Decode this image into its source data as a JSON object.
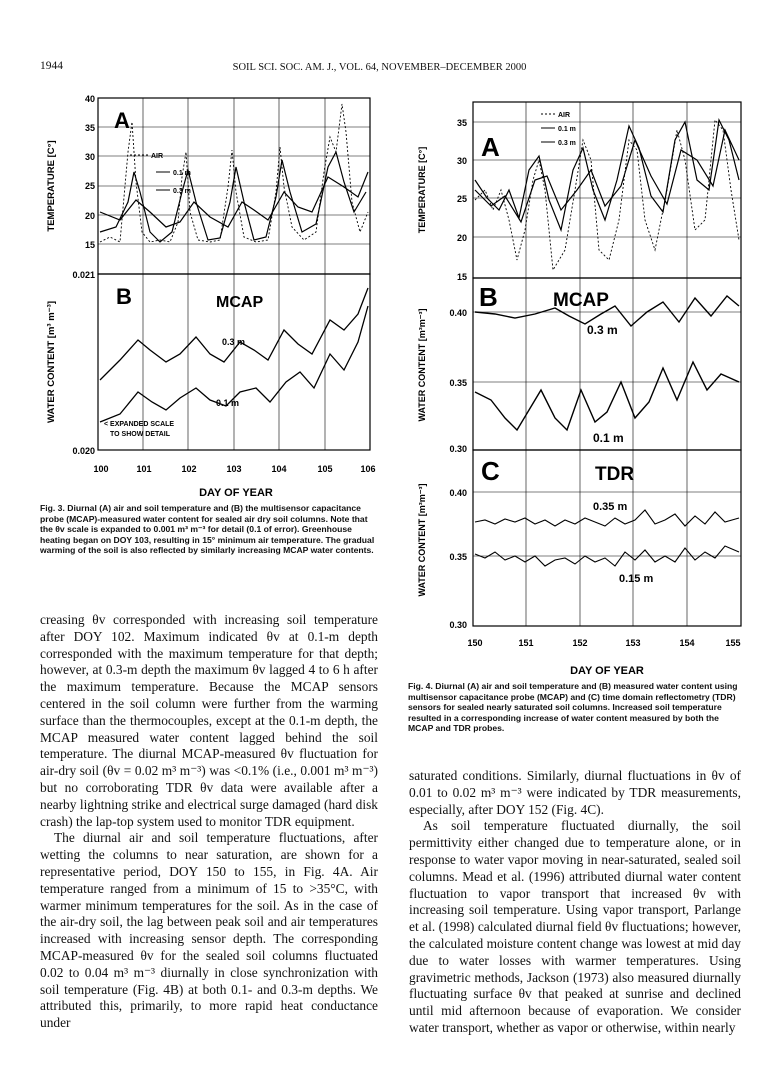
{
  "header": {
    "page_number": "1944",
    "running_title": "SOIL SCI. SOC. AM. J., VOL. 64, NOVEMBER–DECEMBER 2000"
  },
  "fig3": {
    "caption_label": "Fig. 3.",
    "caption_text": "Diurnal (A) air and soil temperature and (B) the multisensor capacitance probe (MCAP)-measured water content for sealed air dry soil columns. Note that the θv scale is expanded to 0.001 m³ m⁻³ for detail (0.1 of error). Greenhouse heating began on DOY 103, resulting in 15° minimum air temperature. The gradual warming of the soil is also reflected by similarly increasing MCAP water contents.",
    "xlabel": "DAY OF YEAR",
    "panelA": {
      "letter": "A",
      "ylabel": "TEMPERATURE [C°]",
      "yticks": [
        "40",
        "35",
        "30",
        "25",
        "20",
        "15"
      ],
      "legend": [
        "AIR",
        "0.1 m",
        "0.3 m"
      ]
    },
    "panelB": {
      "letter": "B",
      "title": "MCAP",
      "ylabel": "WATER CONTENT [m³ m⁻³]",
      "yticks": [
        "0.021",
        "0.020"
      ],
      "label_03": "0.3 m",
      "label_01": "0.1 m",
      "note1": "< EXPANDED SCALE",
      "note2": "TO SHOW DETAIL"
    },
    "xticks": [
      "100",
      "101",
      "102",
      "103",
      "104",
      "105",
      "106"
    ]
  },
  "fig4": {
    "caption_label": "Fig. 4.",
    "caption_text": "Diurnal (A) air and soil temperature and (B) measured water content using multisensor capacitance probe (MCAP) and (C) time domain reflectometry (TDR) sensors for sealed nearly saturated soil columns. Increased soil temperature resulted in a corresponding increase of water content measured by both the MCAP and TDR probes.",
    "xlabel": "DAY OF YEAR",
    "panelA": {
      "letter": "A",
      "ylabel": "TEMPERATURE [C°]",
      "yticks": [
        "35",
        "30",
        "25",
        "20",
        "15"
      ],
      "legend": [
        "AIR",
        "0.1 m",
        "0.3 m"
      ]
    },
    "panelB": {
      "letter": "B",
      "title": "MCAP",
      "ylabel": "WATER CONTENT [m³m⁻³]",
      "yticks": [
        "0.40",
        "0.35",
        "0.30"
      ],
      "label_03": "0.3 m",
      "label_01": "0.1 m"
    },
    "panelC": {
      "letter": "C",
      "title": "TDR",
      "ylabel": "WATER CONTENT [m³m⁻³]",
      "yticks": [
        "0.40",
        "0.35",
        "0.30"
      ],
      "label_035": "0.35 m",
      "label_015": "0.15 m"
    },
    "xticks": [
      "150",
      "151",
      "152",
      "153",
      "154",
      "155"
    ]
  },
  "left_text": [
    "creasing θv corresponded with increasing soil temperature after DOY 102. Maximum indicated θv at 0.1-m depth corresponded with the maximum temperature for that depth; however, at 0.3-m depth the maximum θv lagged 4 to 6 h after the maximum temperature. Because the MCAP sensors centered in the soil column were further from the warming surface than the thermocouples, except at the 0.1-m depth, the MCAP measured water content lagged behind the soil temperature. The diurnal MCAP-measured θv fluctuation for air-dry soil (θv = 0.02 m³ m⁻³) was <0.1% (i.e., 0.001 m³ m⁻³) but no corroborating TDR θv data were available after a nearby lightning strike and electrical surge damaged (hard disk crash) the lap-top system used to monitor TDR equipment.",
    "The diurnal air and soil temperature fluctuations, after wetting the columns to near saturation, are shown for a representative period, DOY 150 to 155, in Fig. 4A. Air temperature ranged from a minimum of 15 to >35°C, with warmer minimum temperatures for the soil. As in the case of the air-dry soil, the lag between peak soil and air temperatures increased with increasing sensor depth. The corresponding MCAP-measured θv for the sealed soil columns fluctuated 0.02 to 0.04 m³ m⁻³ diurnally in close synchronization with soil temperature (Fig. 4B) at both 0.1- and 0.3-m depths. We attributed this, primarily, to more rapid heat conductance under"
  ],
  "right_text": [
    "saturated conditions. Similarly, diurnal fluctuations in θv of 0.01 to 0.02 m³ m⁻³ were indicated by TDR measurements, especially, after DOY 152 (Fig. 4C).",
    "As soil temperature fluctuated diurnally, the soil permittivity either changed due to temperature alone, or in response to water vapor moving in near-saturated, sealed soil columns. Mead et al. (1996) attributed diurnal water content fluctuation to vapor transport that increased θv with increasing soil temperature. Using vapor transport, Parlange et al. (1998) calculated diurnal field θv fluctuations; however, the calculated moisture content change was lowest at mid day due to water losses with warmer temperatures. Using gravimetric methods, Jackson (1973) also measured diurnally fluctuating surface θv that peaked at sunrise and declined until mid afternoon because of evaporation. We consider water transport, whether as vapor or otherwise, within nearly"
  ]
}
